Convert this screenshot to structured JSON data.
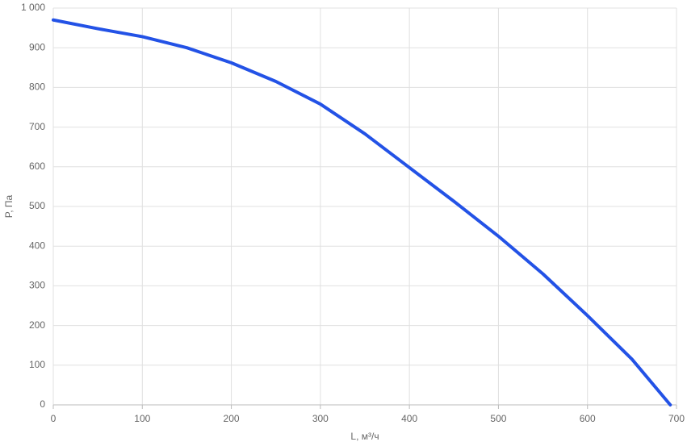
{
  "chart_data": {
    "type": "line",
    "x_label": "L, м³/ч",
    "y_label": "P, Па",
    "x": [
      0,
      50,
      100,
      150,
      200,
      250,
      300,
      350,
      400,
      450,
      500,
      550,
      600,
      650,
      693
    ],
    "series": [
      {
        "name": "P",
        "color": "#2352e6",
        "values": [
          970,
          948,
          928,
          900,
          862,
          815,
          758,
          683,
          598,
          513,
          425,
          330,
          225,
          115,
          0
        ]
      }
    ],
    "xlim": [
      0,
      700
    ],
    "xticks": [
      0,
      100,
      200,
      300,
      400,
      500,
      600,
      700
    ],
    "ylim": [
      0,
      1000
    ],
    "yticks": [
      0,
      100,
      200,
      300,
      400,
      500,
      600,
      700,
      800,
      900,
      {
        "value": 1000,
        "label": "1 000"
      }
    ],
    "grid": true
  }
}
